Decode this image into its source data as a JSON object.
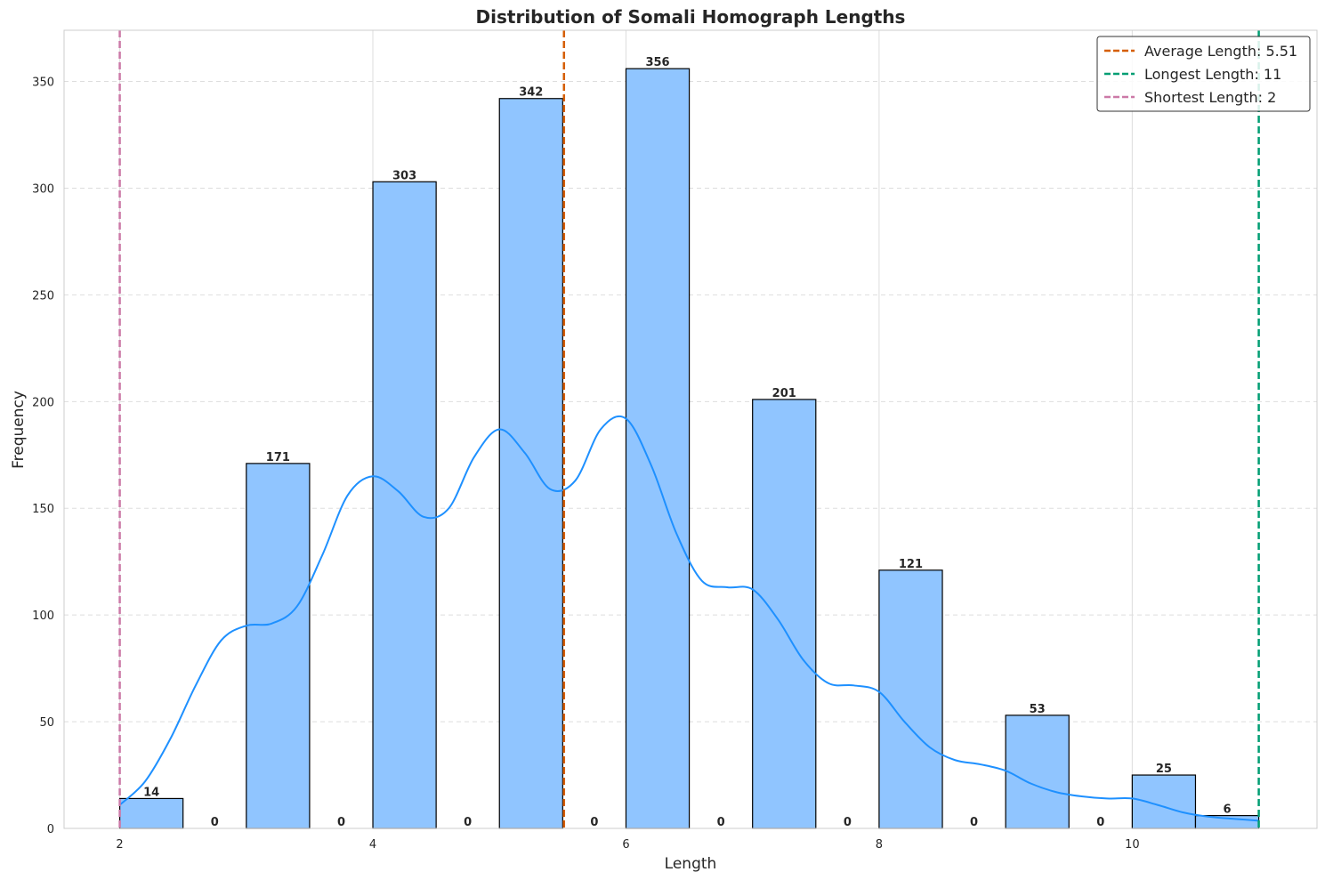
{
  "chart_data": {
    "type": "bar",
    "title": "Distribution of Somali Homograph Lengths",
    "xlabel": "Length",
    "ylabel": "Frequency",
    "xlim": [
      1.56,
      11.46
    ],
    "ylim": [
      0,
      374
    ],
    "xticks": [
      2,
      4,
      6,
      8,
      10
    ],
    "yticks": [
      0,
      50,
      100,
      150,
      200,
      250,
      300,
      350
    ],
    "grid": true,
    "bin_width": 0.5,
    "bins": [
      {
        "start": 2.0,
        "count": 14,
        "label": "14"
      },
      {
        "start": 2.5,
        "count": 0,
        "label": "0"
      },
      {
        "start": 3.0,
        "count": 171,
        "label": "171"
      },
      {
        "start": 3.5,
        "count": 0,
        "label": "0"
      },
      {
        "start": 4.0,
        "count": 303,
        "label": "303"
      },
      {
        "start": 4.5,
        "count": 0,
        "label": "0"
      },
      {
        "start": 5.0,
        "count": 342,
        "label": "342"
      },
      {
        "start": 5.5,
        "count": 0,
        "label": "0"
      },
      {
        "start": 6.0,
        "count": 356,
        "label": "356"
      },
      {
        "start": 6.5,
        "count": 0,
        "label": "0"
      },
      {
        "start": 7.0,
        "count": 201,
        "label": "201"
      },
      {
        "start": 7.5,
        "count": 0,
        "label": "0"
      },
      {
        "start": 8.0,
        "count": 121,
        "label": "121"
      },
      {
        "start": 8.5,
        "count": 0,
        "label": "0"
      },
      {
        "start": 9.0,
        "count": 53,
        "label": "53"
      },
      {
        "start": 9.5,
        "count": 0,
        "label": "0"
      },
      {
        "start": 10.0,
        "count": 25,
        "label": "25"
      },
      {
        "start": 10.5,
        "count": 6,
        "label": "6"
      }
    ],
    "kde": [
      [
        2.0,
        11
      ],
      [
        2.2,
        22
      ],
      [
        2.4,
        42
      ],
      [
        2.6,
        67
      ],
      [
        2.8,
        88
      ],
      [
        3.0,
        95
      ],
      [
        3.2,
        96
      ],
      [
        3.4,
        104
      ],
      [
        3.6,
        128
      ],
      [
        3.8,
        156
      ],
      [
        4.0,
        165
      ],
      [
        4.2,
        158
      ],
      [
        4.4,
        146
      ],
      [
        4.6,
        150
      ],
      [
        4.8,
        174
      ],
      [
        5.0,
        187
      ],
      [
        5.2,
        176
      ],
      [
        5.4,
        159
      ],
      [
        5.6,
        163
      ],
      [
        5.8,
        187
      ],
      [
        6.0,
        192
      ],
      [
        6.2,
        170
      ],
      [
        6.4,
        138
      ],
      [
        6.6,
        116
      ],
      [
        6.8,
        113
      ],
      [
        7.0,
        112
      ],
      [
        7.2,
        98
      ],
      [
        7.4,
        79
      ],
      [
        7.6,
        68
      ],
      [
        7.8,
        67
      ],
      [
        8.0,
        64
      ],
      [
        8.2,
        50
      ],
      [
        8.4,
        38
      ],
      [
        8.6,
        32
      ],
      [
        8.8,
        30
      ],
      [
        9.0,
        27
      ],
      [
        9.2,
        21
      ],
      [
        9.4,
        17
      ],
      [
        9.6,
        15
      ],
      [
        9.8,
        14
      ],
      [
        10.0,
        14
      ],
      [
        10.2,
        11
      ],
      [
        10.4,
        7.5
      ],
      [
        10.6,
        5.5
      ],
      [
        10.8,
        4.5
      ],
      [
        11.0,
        3.6
      ]
    ],
    "vlines": [
      {
        "name": "Average Length: 5.51",
        "x": 5.51,
        "color": "#d55e00"
      },
      {
        "name": "Longest Length: 11",
        "x": 11,
        "color": "#009e73"
      },
      {
        "name": "Shortest Length: 2",
        "x": 2,
        "color": "#cc79a7"
      }
    ],
    "legend_position": "top-right",
    "colors": {
      "bar_fill": "#90c5ff",
      "bar_edge": "#000000",
      "kde": "#1e90ff"
    }
  }
}
